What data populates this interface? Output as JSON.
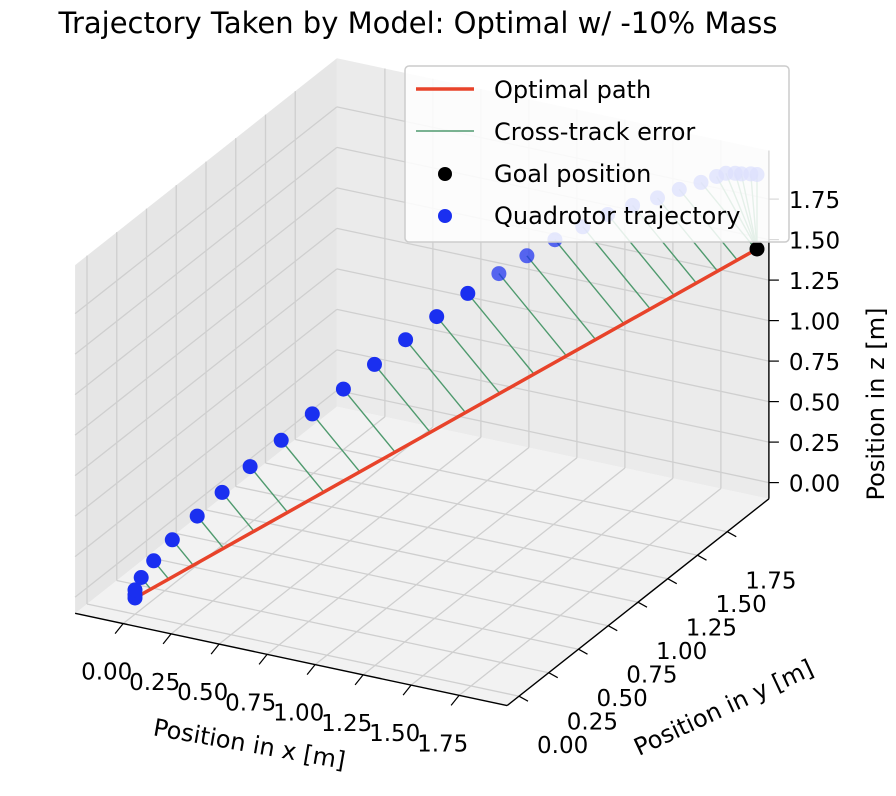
{
  "title": "Trajectory Taken by Model: Optimal w/ -10% Mass",
  "chart_data": {
    "type": "scatter3d",
    "title": "Trajectory Taken by Model: Optimal w/ -10% Mass",
    "xlabel": "Position in x [m]",
    "ylabel": "Position in y [m]",
    "zlabel": "Position in z [m]",
    "xlim": [
      0,
      2
    ],
    "ylim": [
      0,
      2
    ],
    "zlim": [
      0,
      2
    ],
    "xticks": [
      "0.00",
      "0.25",
      "0.50",
      "0.75",
      "1.00",
      "1.25",
      "1.50",
      "1.75"
    ],
    "yticks": [
      "0.00",
      "0.25",
      "0.50",
      "0.75",
      "1.00",
      "1.25",
      "1.50",
      "1.75"
    ],
    "zticks": [
      "0.00",
      "0.25",
      "0.50",
      "0.75",
      "1.00",
      "1.25",
      "1.50",
      "1.75"
    ],
    "grid": true,
    "legend_position": "top-right",
    "legend": [
      "Optimal path",
      "Cross-track error",
      "Goal position",
      "Quadrotor trajectory"
    ],
    "colors": {
      "optimal": "#e8432a",
      "error": "#4f9a6e",
      "goal": "#000000",
      "quad": "#1a2ff0",
      "pane": "#f2f2f2",
      "grid": "#cfcfcf"
    },
    "optimal_path": {
      "start": [
        0.0,
        0.0,
        0.0
      ],
      "end": [
        2.0,
        2.0,
        1.5
      ]
    },
    "goal": [
      2.0,
      2.0,
      1.5
    ],
    "trajectory": {
      "x": [
        0.0,
        0.0,
        0.0,
        0.02,
        0.06,
        0.12,
        0.2,
        0.28,
        0.37,
        0.47,
        0.57,
        0.67,
        0.77,
        0.87,
        0.97,
        1.07,
        1.17,
        1.26,
        1.35,
        1.44,
        1.52,
        1.6,
        1.68,
        1.75,
        1.82,
        1.87,
        1.9,
        1.93,
        1.95,
        1.98,
        2.0
      ],
      "y": [
        0.0,
        0.0,
        0.0,
        0.02,
        0.06,
        0.12,
        0.2,
        0.28,
        0.37,
        0.47,
        0.57,
        0.67,
        0.77,
        0.87,
        0.97,
        1.07,
        1.17,
        1.26,
        1.35,
        1.44,
        1.52,
        1.6,
        1.68,
        1.75,
        1.82,
        1.87,
        1.9,
        1.93,
        1.95,
        1.98,
        2.0
      ],
      "z": [
        0.0,
        0.02,
        0.05,
        0.12,
        0.21,
        0.32,
        0.44,
        0.56,
        0.69,
        0.82,
        0.95,
        1.07,
        1.19,
        1.31,
        1.42,
        1.53,
        1.62,
        1.7,
        1.77,
        1.82,
        1.87,
        1.9,
        1.92,
        1.95,
        1.97,
        1.99,
        2.0,
        1.99,
        1.98,
        1.97,
        1.96
      ]
    }
  }
}
